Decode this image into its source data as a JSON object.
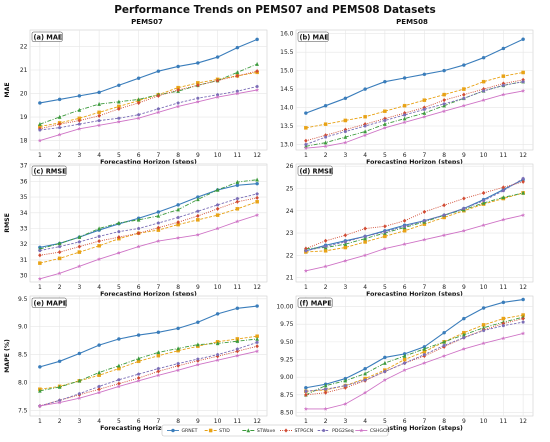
{
  "figure": {
    "title": "Performance Trends on PEMS07 and PEMS08 Datasets",
    "column_titles": [
      "PEMS07",
      "PEMS08"
    ]
  },
  "colors": {
    "GRNET": "#3a7dbb",
    "STID": "#e8a215",
    "STWave": "#3c9a3c",
    "STPGCN": "#d04a32",
    "PDG2Seq": "#7a6db6",
    "CSHGCN": "#cf74c6"
  },
  "chart_data": [
    {
      "type": "line",
      "id": "a",
      "tag": "(a) MAE",
      "title": "PEMS07",
      "xlabel": "Forecasting Horizon (steps)",
      "ylabel": "MAE",
      "x": [
        1,
        2,
        3,
        4,
        5,
        6,
        7,
        8,
        9,
        10,
        11,
        12
      ],
      "ylim": [
        17.6,
        22.7
      ],
      "yticks": [
        18,
        19,
        20,
        21,
        22
      ],
      "series": [
        {
          "name": "GRNET",
          "values": [
            19.6,
            19.75,
            19.9,
            20.05,
            20.35,
            20.65,
            20.95,
            21.15,
            21.3,
            21.55,
            21.95,
            22.3
          ]
        },
        {
          "name": "STID",
          "values": [
            18.6,
            18.75,
            18.95,
            19.2,
            19.45,
            19.7,
            19.95,
            20.25,
            20.45,
            20.6,
            20.75,
            20.9
          ]
        },
        {
          "name": "STWave",
          "values": [
            18.7,
            19.0,
            19.3,
            19.55,
            19.65,
            19.75,
            19.95,
            20.1,
            20.35,
            20.55,
            20.9,
            21.25
          ]
        },
        {
          "name": "STPGCN",
          "values": [
            18.5,
            18.7,
            18.85,
            19.05,
            19.35,
            19.6,
            19.9,
            20.15,
            20.35,
            20.55,
            20.75,
            20.95
          ]
        },
        {
          "name": "PDG2Seq",
          "values": [
            18.45,
            18.55,
            18.7,
            18.85,
            18.95,
            19.1,
            19.35,
            19.6,
            19.8,
            19.95,
            20.1,
            20.3
          ]
        },
        {
          "name": "CSHGCN",
          "values": [
            18.0,
            18.25,
            18.5,
            18.65,
            18.8,
            18.95,
            19.2,
            19.45,
            19.65,
            19.85,
            20.0,
            20.15
          ]
        }
      ]
    },
    {
      "type": "line",
      "id": "b",
      "tag": "(b) MAE",
      "title": "PEMS08",
      "xlabel": "Forecasting Horizon (steps)",
      "ylabel": "",
      "x": [
        1,
        2,
        3,
        4,
        5,
        6,
        7,
        8,
        9,
        10,
        11,
        12
      ],
      "ylim": [
        12.85,
        16.1
      ],
      "yticks": [
        13.0,
        13.5,
        14.0,
        14.5,
        15.0,
        15.5,
        16.0
      ],
      "series": [
        {
          "name": "GRNET",
          "values": [
            13.85,
            14.05,
            14.25,
            14.5,
            14.7,
            14.8,
            14.9,
            15.0,
            15.15,
            15.35,
            15.6,
            15.85
          ]
        },
        {
          "name": "STID",
          "values": [
            13.45,
            13.55,
            13.65,
            13.75,
            13.9,
            14.05,
            14.2,
            14.35,
            14.5,
            14.7,
            14.85,
            14.95
          ]
        },
        {
          "name": "STWave",
          "values": [
            12.95,
            13.05,
            13.2,
            13.35,
            13.55,
            13.7,
            13.85,
            14.05,
            14.25,
            14.45,
            14.6,
            14.7
          ]
        },
        {
          "name": "STPGCN",
          "values": [
            13.1,
            13.25,
            13.4,
            13.55,
            13.7,
            13.85,
            14.0,
            14.2,
            14.35,
            14.5,
            14.65,
            14.75
          ]
        },
        {
          "name": "PDG2Seq",
          "values": [
            13.0,
            13.2,
            13.35,
            13.5,
            13.65,
            13.8,
            13.95,
            14.1,
            14.25,
            14.45,
            14.6,
            14.7
          ]
        },
        {
          "name": "CSHGCN",
          "values": [
            12.9,
            12.95,
            13.05,
            13.25,
            13.45,
            13.6,
            13.75,
            13.9,
            14.05,
            14.2,
            14.35,
            14.45
          ]
        }
      ]
    },
    {
      "type": "line",
      "id": "c",
      "tag": "(c) RMSE",
      "title": "",
      "xlabel": "Forecasting Horizon (steps)",
      "ylabel": "RMSE",
      "x": [
        1,
        2,
        3,
        4,
        5,
        6,
        7,
        8,
        9,
        10,
        11,
        12
      ],
      "ylim": [
        29.6,
        37.1
      ],
      "yticks": [
        30,
        31,
        32,
        33,
        34,
        35,
        36,
        37
      ],
      "series": [
        {
          "name": "GRNET",
          "values": [
            31.8,
            32.05,
            32.45,
            32.9,
            33.3,
            33.65,
            34.05,
            34.5,
            35.0,
            35.45,
            35.75,
            35.85
          ]
        },
        {
          "name": "STID",
          "values": [
            30.8,
            31.1,
            31.5,
            31.9,
            32.35,
            32.7,
            32.9,
            33.25,
            33.55,
            33.85,
            34.25,
            34.7
          ]
        },
        {
          "name": "STWave",
          "values": [
            31.7,
            32.05,
            32.45,
            33.0,
            33.35,
            33.55,
            33.8,
            34.2,
            34.85,
            35.45,
            35.95,
            36.1
          ]
        },
        {
          "name": "STPGCN",
          "values": [
            31.3,
            31.5,
            31.85,
            32.2,
            32.45,
            32.7,
            33.05,
            33.4,
            33.8,
            34.25,
            34.7,
            34.95
          ]
        },
        {
          "name": "PDG2Seq",
          "values": [
            31.6,
            31.85,
            32.15,
            32.5,
            32.8,
            33.0,
            33.35,
            33.7,
            34.1,
            34.5,
            34.9,
            35.2
          ]
        },
        {
          "name": "CSHGCN",
          "values": [
            29.8,
            30.15,
            30.6,
            31.05,
            31.45,
            31.85,
            32.2,
            32.4,
            32.6,
            33.0,
            33.45,
            33.85
          ]
        }
      ]
    },
    {
      "type": "line",
      "id": "d",
      "tag": "(d) RMSE",
      "title": "",
      "xlabel": "Forecasting Horizon (steps)",
      "ylabel": "",
      "x": [
        1,
        2,
        3,
        4,
        5,
        6,
        7,
        8,
        9,
        10,
        11,
        12
      ],
      "ylim": [
        20.8,
        26.1
      ],
      "yticks": [
        21,
        22,
        23,
        24,
        25,
        26
      ],
      "series": [
        {
          "name": "GRNET",
          "values": [
            22.2,
            22.45,
            22.65,
            22.85,
            23.1,
            23.35,
            23.55,
            23.8,
            24.1,
            24.5,
            24.95,
            25.4
          ]
        },
        {
          "name": "STID",
          "values": [
            22.15,
            22.2,
            22.35,
            22.6,
            22.85,
            23.1,
            23.4,
            23.7,
            24.0,
            24.3,
            24.55,
            24.8
          ]
        },
        {
          "name": "STWave",
          "values": [
            22.3,
            22.35,
            22.5,
            22.75,
            23.0,
            23.25,
            23.5,
            23.8,
            24.05,
            24.35,
            24.6,
            24.8
          ]
        },
        {
          "name": "STPGCN",
          "values": [
            22.3,
            22.65,
            22.9,
            23.2,
            23.3,
            23.55,
            23.95,
            24.25,
            24.55,
            24.8,
            25.05,
            25.3
          ]
        },
        {
          "name": "PDG2Seq",
          "values": [
            22.2,
            22.4,
            22.6,
            22.85,
            23.05,
            23.3,
            23.55,
            23.8,
            24.1,
            24.45,
            24.9,
            25.45
          ]
        },
        {
          "name": "CSHGCN",
          "values": [
            21.3,
            21.5,
            21.75,
            22.0,
            22.3,
            22.5,
            22.7,
            22.9,
            23.1,
            23.35,
            23.6,
            23.8
          ]
        }
      ]
    },
    {
      "type": "line",
      "id": "e",
      "tag": "(e) MAPE",
      "title": "",
      "xlabel": "Forecasting Horizon (steps)",
      "ylabel": "MAPE (%)",
      "x": [
        1,
        2,
        3,
        4,
        5,
        6,
        7,
        8,
        9,
        10,
        11,
        12
      ],
      "ylim": [
        7.4,
        9.55
      ],
      "yticks": [
        7.5,
        8.0,
        8.5,
        9.0,
        9.5
      ],
      "series": [
        {
          "name": "GRNET",
          "values": [
            8.28,
            8.38,
            8.52,
            8.67,
            8.78,
            8.85,
            8.9,
            8.97,
            9.08,
            9.23,
            9.33,
            9.37
          ]
        },
        {
          "name": "STID",
          "values": [
            7.88,
            7.93,
            8.03,
            8.13,
            8.25,
            8.38,
            8.48,
            8.57,
            8.65,
            8.73,
            8.78,
            8.83
          ]
        },
        {
          "name": "STWave",
          "values": [
            7.85,
            7.92,
            8.03,
            8.18,
            8.3,
            8.43,
            8.54,
            8.61,
            8.68,
            8.7,
            8.74,
            8.78
          ]
        },
        {
          "name": "STPGCN",
          "values": [
            7.58,
            7.68,
            7.78,
            7.88,
            7.98,
            8.08,
            8.2,
            8.3,
            8.39,
            8.47,
            8.56,
            8.65
          ]
        },
        {
          "name": "PDG2Seq",
          "values": [
            7.58,
            7.68,
            7.8,
            7.93,
            8.05,
            8.15,
            8.25,
            8.34,
            8.42,
            8.5,
            8.6,
            8.72
          ]
        },
        {
          "name": "CSHGCN",
          "values": [
            7.58,
            7.64,
            7.72,
            7.82,
            7.93,
            8.03,
            8.13,
            8.22,
            8.32,
            8.4,
            8.48,
            8.56
          ]
        }
      ]
    },
    {
      "type": "line",
      "id": "f",
      "tag": "(f) MAPE",
      "title": "",
      "xlabel": "Forecasting Horizon (steps)",
      "ylabel": "",
      "x": [
        1,
        2,
        3,
        4,
        5,
        6,
        7,
        8,
        9,
        10,
        11,
        12
      ],
      "ylim": [
        8.45,
        10.15
      ],
      "yticks": [
        8.5,
        8.75,
        9.0,
        9.25,
        9.5,
        9.75,
        10.0
      ],
      "series": [
        {
          "name": "GRNET",
          "values": [
            8.85,
            8.9,
            8.98,
            9.12,
            9.28,
            9.33,
            9.43,
            9.63,
            9.83,
            9.98,
            10.06,
            10.1
          ]
        },
        {
          "name": "STID",
          "values": [
            8.8,
            8.82,
            8.88,
            8.98,
            9.1,
            9.25,
            9.36,
            9.5,
            9.63,
            9.74,
            9.83,
            9.88
          ]
        },
        {
          "name": "STWave",
          "values": [
            8.75,
            8.88,
            8.95,
            9.05,
            9.2,
            9.3,
            9.4,
            9.5,
            9.6,
            9.7,
            9.78,
            9.85
          ]
        },
        {
          "name": "STPGCN",
          "values": [
            8.75,
            8.78,
            8.85,
            8.95,
            9.08,
            9.2,
            9.3,
            9.43,
            9.56,
            9.67,
            9.76,
            9.83
          ]
        },
        {
          "name": "PDG2Seq",
          "values": [
            8.8,
            8.83,
            8.88,
            8.96,
            9.08,
            9.2,
            9.32,
            9.45,
            9.56,
            9.66,
            9.73,
            9.78
          ]
        },
        {
          "name": "CSHGCN",
          "values": [
            8.55,
            8.55,
            8.62,
            8.78,
            8.96,
            9.1,
            9.2,
            9.3,
            9.4,
            9.48,
            9.55,
            9.62
          ]
        }
      ]
    }
  ],
  "legend": {
    "placement": "bottom-center",
    "entries": [
      "GRNET",
      "STID",
      "STWave",
      "STPGCN",
      "PDG2Seq",
      "CSHGCN"
    ]
  }
}
